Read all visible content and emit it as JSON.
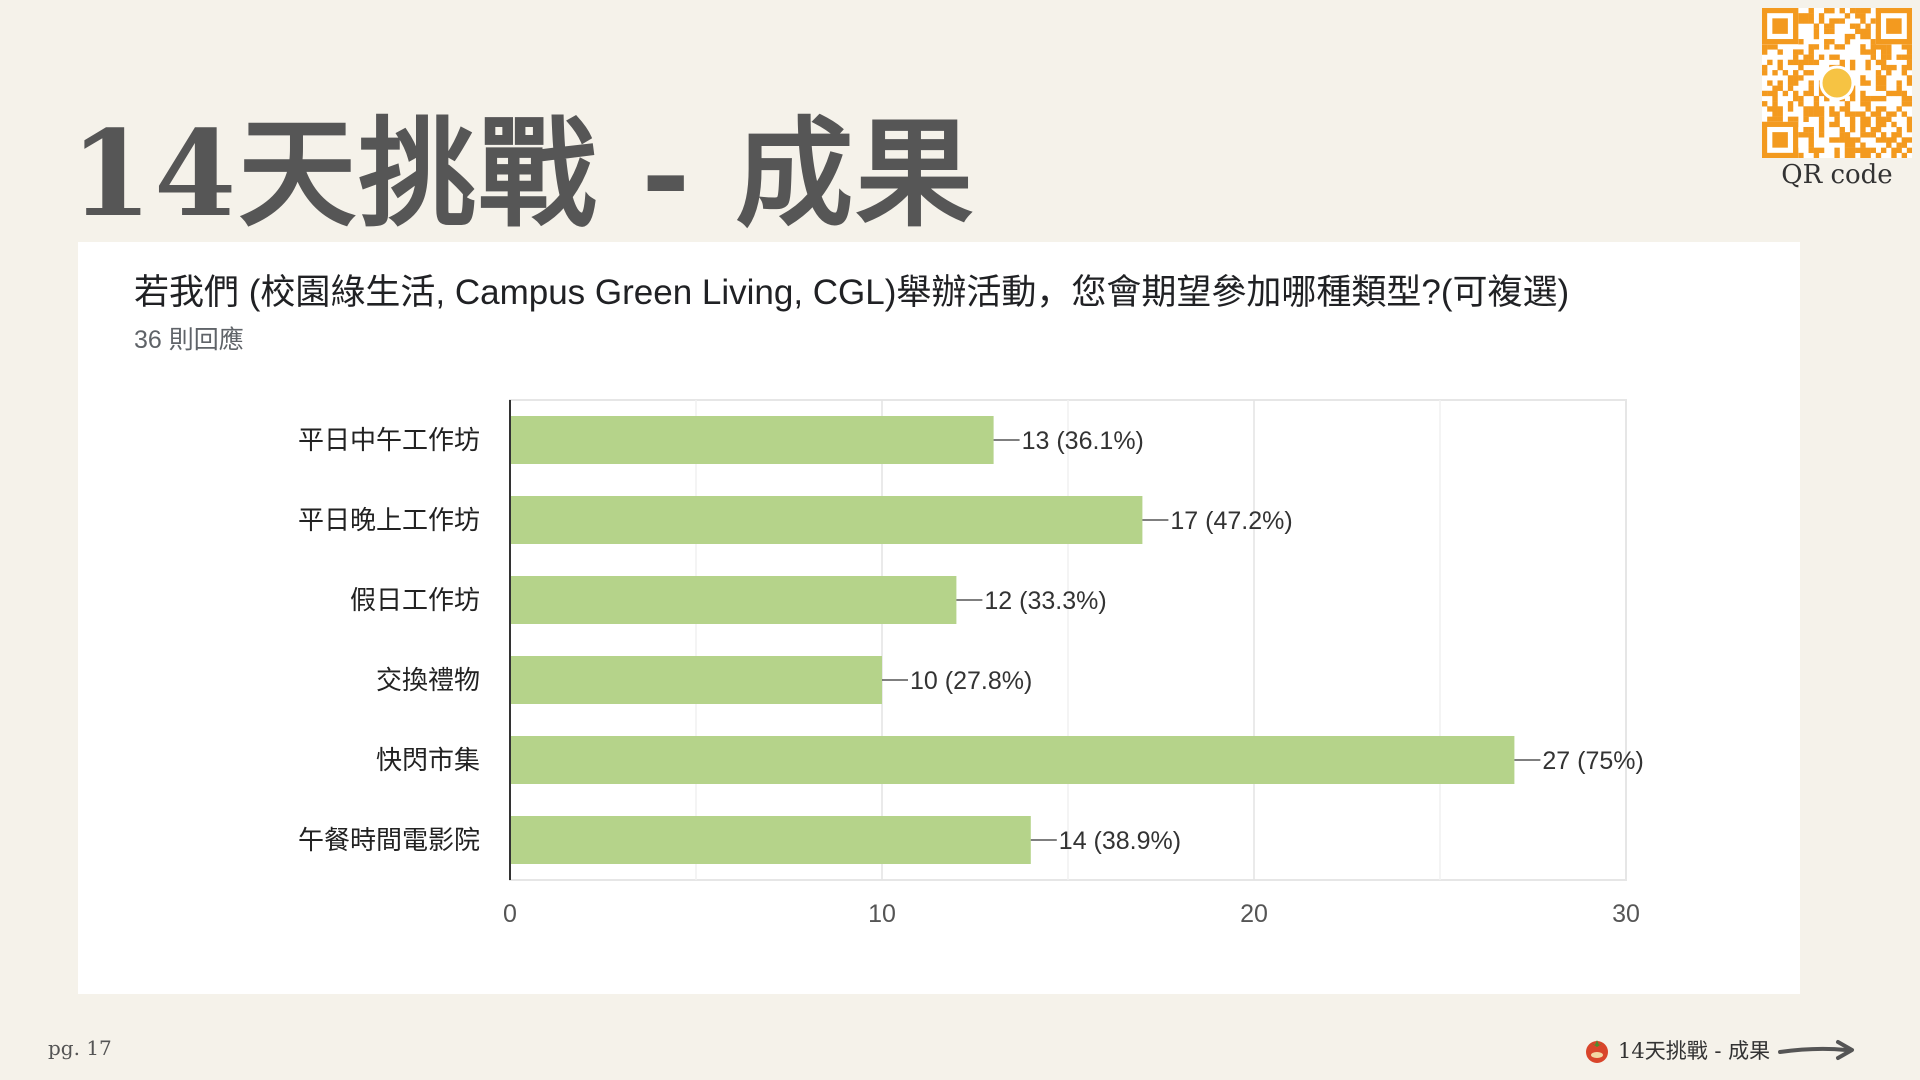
{
  "slide": {
    "title": "14天挑戰 - 成果",
    "qr_caption": "QR code",
    "page_label": "pg. 17",
    "footer_label": "14天挑戰 - 成果",
    "footer_icon": "tomato-logo-icon",
    "next_icon": "arrow-right-icon"
  },
  "colors": {
    "background": "#f5f2ea",
    "bar": "#b5d38a",
    "qr": "#f39a1f"
  },
  "chart_data": {
    "type": "bar",
    "orientation": "horizontal",
    "title": "若我們 (校園綠生活, Campus Green Living, CGL)舉辦活動，您會期望參加哪種類型?(可複選)",
    "subtitle": "36 則回應",
    "categories": [
      "平日中午工作坊",
      "平日晚上工作坊",
      "假日工作坊",
      "交換禮物",
      "快閃市集",
      "午餐時間電影院"
    ],
    "values": [
      13,
      17,
      12,
      10,
      27,
      14
    ],
    "data_labels": [
      "13 (36.1%)",
      "17 (47.2%)",
      "12 (33.3%)",
      "10 (27.8%)",
      "27 (75%)",
      "14 (38.9%)"
    ],
    "xlim": [
      0,
      30
    ],
    "x_ticks": [
      "0",
      "10",
      "20",
      "30"
    ],
    "grid": true
  }
}
